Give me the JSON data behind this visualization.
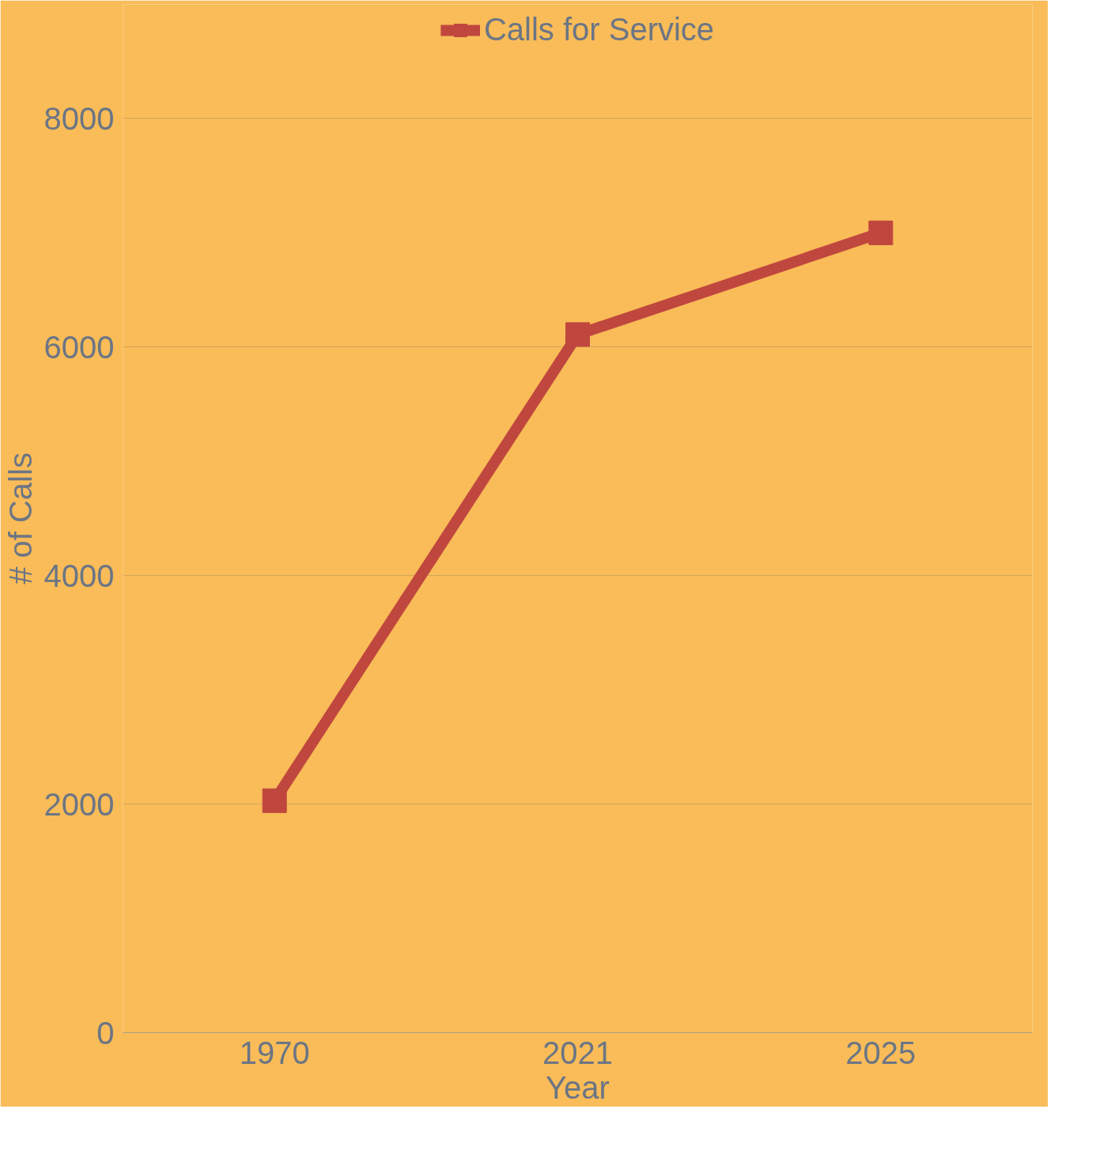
{
  "chart_data": {
    "type": "line",
    "xlabel": "Year",
    "ylabel": "# of Calls",
    "categories": [
      "1970",
      "2021",
      "2025"
    ],
    "series": [
      {
        "name": "Calls for Service",
        "color": "#c0473e",
        "values": [
          2030,
          6110,
          7000
        ]
      }
    ],
    "ylim": [
      0,
      9000
    ],
    "yticks": [
      0,
      2000,
      4000,
      6000,
      8000
    ],
    "grid": "y",
    "legend": "top",
    "marker": "square",
    "line_style": "solid"
  }
}
